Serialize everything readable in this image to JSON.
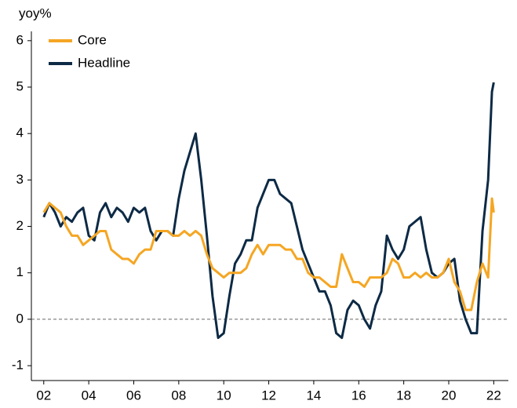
{
  "chart_data": {
    "type": "line",
    "y_axis_label": "yoy%",
    "x": [
      2002,
      2002.25,
      2002.5,
      2002.75,
      2003,
      2003.25,
      2003.5,
      2003.75,
      2004,
      2004.25,
      2004.5,
      2004.75,
      2005,
      2005.25,
      2005.5,
      2005.75,
      2006,
      2006.25,
      2006.5,
      2006.75,
      2007,
      2007.25,
      2007.5,
      2007.75,
      2008,
      2008.25,
      2008.5,
      2008.75,
      2009,
      2009.25,
      2009.5,
      2009.75,
      2010,
      2010.25,
      2010.5,
      2010.75,
      2011,
      2011.25,
      2011.5,
      2011.75,
      2012,
      2012.25,
      2012.5,
      2012.75,
      2013,
      2013.25,
      2013.5,
      2013.75,
      2014,
      2014.25,
      2014.5,
      2014.75,
      2015,
      2015.25,
      2015.5,
      2015.75,
      2016,
      2016.25,
      2016.5,
      2016.75,
      2017,
      2017.25,
      2017.5,
      2017.75,
      2018,
      2018.25,
      2018.5,
      2018.75,
      2019,
      2019.25,
      2019.5,
      2019.75,
      2020,
      2020.25,
      2020.5,
      2020.75,
      2021,
      2021.25,
      2021.5,
      2021.75,
      2021.92,
      2022
    ],
    "series": [
      {
        "name": "Core",
        "color": "#f5a623",
        "values": [
          2.3,
          2.5,
          2.4,
          2.3,
          2.0,
          1.8,
          1.8,
          1.6,
          1.7,
          1.8,
          1.9,
          1.9,
          1.5,
          1.4,
          1.3,
          1.3,
          1.2,
          1.4,
          1.5,
          1.5,
          1.9,
          1.9,
          1.9,
          1.8,
          1.8,
          1.9,
          1.8,
          1.9,
          1.8,
          1.4,
          1.1,
          1.0,
          0.9,
          1.0,
          1.0,
          1.0,
          1.1,
          1.4,
          1.6,
          1.4,
          1.6,
          1.6,
          1.6,
          1.5,
          1.5,
          1.3,
          1.3,
          1.0,
          0.9,
          0.9,
          0.8,
          0.7,
          0.7,
          1.4,
          1.1,
          0.8,
          0.8,
          0.7,
          0.9,
          0.9,
          0.9,
          1.0,
          1.3,
          1.2,
          0.9,
          0.9,
          1.0,
          0.9,
          1.0,
          0.9,
          0.9,
          1.0,
          1.3,
          0.8,
          0.6,
          0.2,
          0.2,
          0.8,
          1.2,
          0.9,
          2.6,
          2.3
        ]
      },
      {
        "name": "Headline",
        "color": "#0d2a45",
        "values": [
          2.2,
          2.5,
          2.3,
          2.0,
          2.2,
          2.1,
          2.3,
          2.4,
          1.8,
          1.7,
          2.3,
          2.5,
          2.2,
          2.4,
          2.3,
          2.1,
          2.4,
          2.3,
          2.4,
          1.9,
          1.7,
          1.9,
          1.9,
          1.8,
          2.6,
          3.2,
          3.6,
          4.0,
          3.0,
          1.8,
          0.5,
          -0.4,
          -0.3,
          0.5,
          1.2,
          1.4,
          1.7,
          1.7,
          2.4,
          2.7,
          3.0,
          3.0,
          2.7,
          2.6,
          2.5,
          2.0,
          1.5,
          1.2,
          0.9,
          0.6,
          0.6,
          0.3,
          -0.3,
          -0.4,
          0.2,
          0.4,
          0.3,
          0.0,
          -0.2,
          0.3,
          0.6,
          1.8,
          1.5,
          1.3,
          1.5,
          2.0,
          2.1,
          2.2,
          1.5,
          1.0,
          0.9,
          1.0,
          1.2,
          1.3,
          0.4,
          0.0,
          -0.3,
          -0.3,
          1.9,
          3.0,
          4.9,
          5.1
        ]
      }
    ],
    "xlim": [
      2001.45,
      2022.65
    ],
    "xticks": [
      {
        "value": 2002,
        "label": "02"
      },
      {
        "value": 2004,
        "label": "04"
      },
      {
        "value": 2006,
        "label": "06"
      },
      {
        "value": 2008,
        "label": "08"
      },
      {
        "value": 2010,
        "label": "10"
      },
      {
        "value": 2012,
        "label": "12"
      },
      {
        "value": 2014,
        "label": "14"
      },
      {
        "value": 2016,
        "label": "16"
      },
      {
        "value": 2018,
        "label": "18"
      },
      {
        "value": 2020,
        "label": "20"
      },
      {
        "value": 2022,
        "label": "22"
      }
    ],
    "ylim": [
      -1.32,
      6.2
    ],
    "yticks": [
      -1,
      0,
      1,
      2,
      3,
      4,
      5,
      6
    ],
    "reference_line": 0,
    "legend": "top-left"
  }
}
